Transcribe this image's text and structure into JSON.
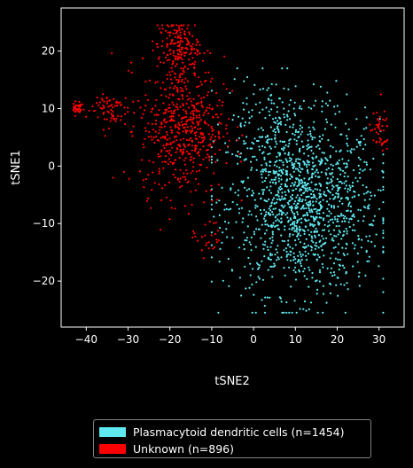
{
  "chart_data": {
    "type": "scatter",
    "title": "",
    "xlabel": "tSNE2",
    "ylabel": "tSNE1",
    "xlim": [
      -46,
      36
    ],
    "ylim": [
      -28,
      27.5
    ],
    "xticks": [
      -40,
      -30,
      -20,
      -10,
      0,
      10,
      20,
      30
    ],
    "yticks": [
      -20,
      -10,
      0,
      10,
      20
    ],
    "grid": false,
    "background": "#000000",
    "legend_position": "bottom-center (below plot)",
    "series": [
      {
        "name": "Plasmacytoid dendritic cells (n=1454)",
        "color": "#5ee8f0",
        "n": 1454,
        "clusters": [
          {
            "center": [
              12,
              -7
            ],
            "spread": [
              9,
              7.5
            ],
            "share": 0.9
          },
          {
            "center": [
              5,
              8
            ],
            "spread": [
              6,
              4
            ],
            "share": 0.1
          }
        ],
        "x_range": [
          -10,
          31
        ],
        "y_range": [
          -25.5,
          17
        ]
      },
      {
        "name": "Unknown (n=896)",
        "color": "#ff0000",
        "n": 896,
        "clusters": [
          {
            "center": [
              -17,
              7
            ],
            "spread": [
              5,
              6
            ],
            "share": 0.62
          },
          {
            "center": [
              -18,
              21
            ],
            "spread": [
              2.5,
              2.2
            ],
            "share": 0.18
          },
          {
            "center": [
              -35,
              10
            ],
            "spread": [
              2.5,
              1.6
            ],
            "share": 0.08
          },
          {
            "center": [
              -42,
              10
            ],
            "spread": [
              0.8,
              0.6
            ],
            "share": 0.04
          },
          {
            "center": [
              30,
              6
            ],
            "spread": [
              1.2,
              1.8
            ],
            "share": 0.05
          },
          {
            "center": [
              -11,
              -12
            ],
            "spread": [
              1.8,
              2.5
            ],
            "share": 0.03
          }
        ],
        "x_range": [
          -43,
          32
        ],
        "y_range": [
          -16,
          24.5
        ]
      }
    ]
  },
  "legend": {
    "items": [
      {
        "label": "Plasmacytoid dendritic cells (n=1454)",
        "color": "#5ee8f0"
      },
      {
        "label": "Unknown (n=896)",
        "color": "#ff0000"
      }
    ]
  }
}
